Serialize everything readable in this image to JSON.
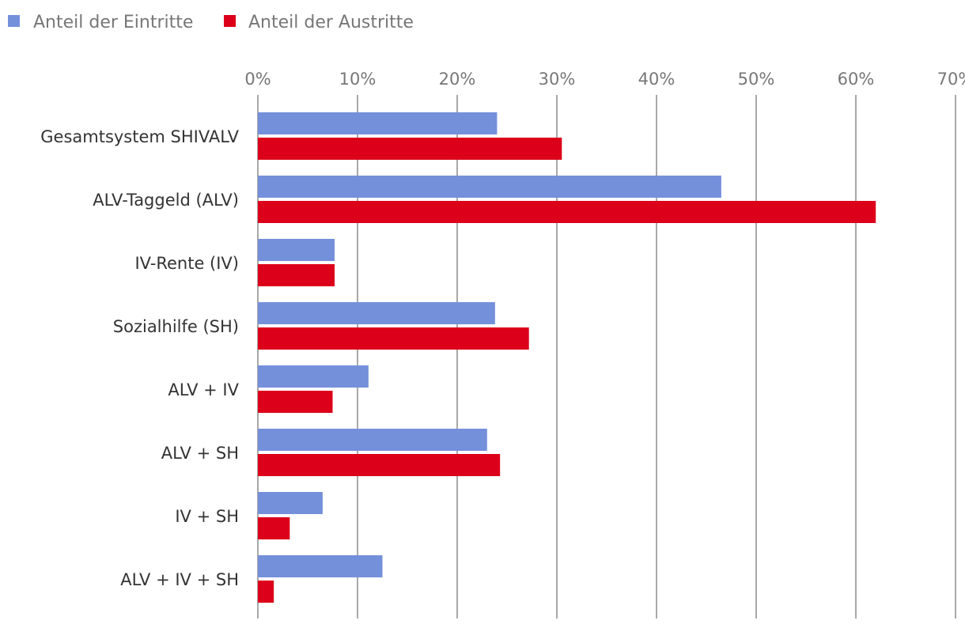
{
  "chart_data": {
    "type": "bar",
    "orientation": "horizontal",
    "title": "",
    "xlabel": "",
    "ylabel": "",
    "xlim": [
      0,
      70
    ],
    "ticks": [
      "0%",
      "10%",
      "20%",
      "30%",
      "40%",
      "50%",
      "60%",
      "70%"
    ],
    "grid": "vertical",
    "legend_position": "top-left",
    "categories": [
      "Gesamtsystem SHIVALV",
      "ALV-Taggeld (ALV)",
      "IV-Rente (IV)",
      "Sozialhilfe (SH)",
      "ALV + IV",
      "ALV + SH",
      "IV + SH",
      "ALV + IV + SH"
    ],
    "series": [
      {
        "name": "Anteil der Eintritte",
        "color": "#7590db",
        "values": [
          24.0,
          46.5,
          7.7,
          23.8,
          11.1,
          23.0,
          6.5,
          12.5
        ]
      },
      {
        "name": "Anteil der Austritte",
        "color": "#dc001a",
        "values": [
          30.5,
          62.0,
          7.7,
          27.2,
          7.5,
          24.3,
          3.2,
          1.6
        ]
      }
    ]
  }
}
